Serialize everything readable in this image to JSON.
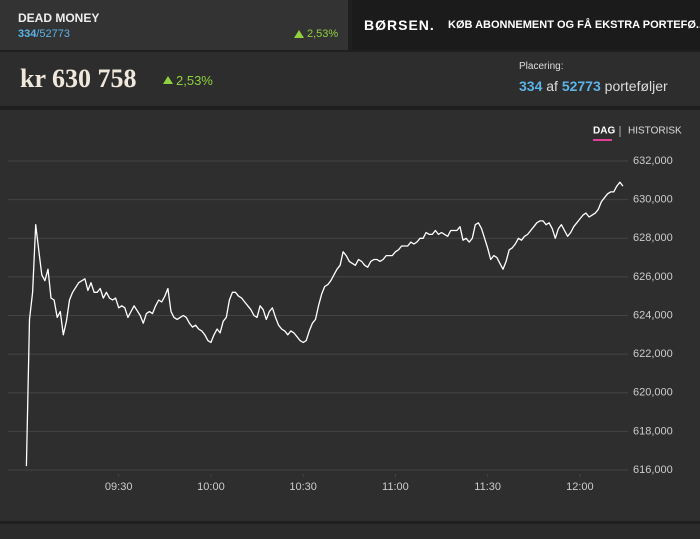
{
  "header": {
    "name": "DEAD MONEY",
    "rank": "334",
    "total": "/52773",
    "change": "2,53%",
    "logo": "BØRSEN.",
    "banner": "KØB ABONNEMENT OG FÅ EKSTRA PORTEFØ..."
  },
  "summary": {
    "value": "kr 630 758",
    "change": "2,53%",
    "placement_label": "Placering:",
    "placement_rank": "334",
    "placement_of": "af",
    "placement_total": "52773",
    "placement_unit": "porteføljer"
  },
  "tabs": [
    "DAG",
    "HISTORISK"
  ],
  "chart_data": {
    "type": "line",
    "color": "#ffffff",
    "grid": true,
    "xlim": [
      "08:54",
      "12:15"
    ],
    "xticks": [
      "09:30",
      "10:00",
      "10:30",
      "11:00",
      "11:30",
      "12:00"
    ],
    "ylim": [
      616000,
      632000
    ],
    "yticks": [
      {
        "value": 616000,
        "label": "616,000"
      },
      {
        "value": 618000,
        "label": "618,000"
      },
      {
        "value": 620000,
        "label": "620,000"
      },
      {
        "value": 622000,
        "label": "622,000"
      },
      {
        "value": 624000,
        "label": "624,000"
      },
      {
        "value": 626000,
        "label": "626,000"
      },
      {
        "value": 628000,
        "label": "628,000"
      },
      {
        "value": 630000,
        "label": "630,000"
      },
      {
        "value": 632000,
        "label": "632,000"
      }
    ],
    "x": [
      "09:00",
      "09:01",
      "09:02",
      "09:03",
      "09:04",
      "09:05",
      "09:06",
      "09:07",
      "09:08",
      "09:09",
      "09:10",
      "09:11",
      "09:12",
      "09:13",
      "09:14",
      "09:15",
      "09:17",
      "09:19",
      "09:20",
      "09:21",
      "09:22",
      "09:23",
      "09:24",
      "09:25",
      "09:26",
      "09:27",
      "09:28",
      "09:29",
      "09:30",
      "09:31",
      "09:32",
      "09:33",
      "09:34",
      "09:35",
      "09:37",
      "09:38",
      "09:39",
      "09:40",
      "09:41",
      "09:42",
      "09:43",
      "09:44",
      "09:45",
      "09:46",
      "09:47",
      "09:48",
      "09:49",
      "09:50",
      "09:51",
      "09:52",
      "09:53",
      "09:54",
      "09:55",
      "09:56",
      "09:57",
      "09:58",
      "09:59",
      "10:00",
      "10:01",
      "10:02",
      "10:03",
      "10:04",
      "10:05",
      "10:06",
      "10:07",
      "10:08",
      "10:09",
      "10:10",
      "10:11",
      "10:12",
      "10:13",
      "10:14",
      "10:15",
      "10:16",
      "10:17",
      "10:18",
      "10:19",
      "10:20",
      "10:21",
      "10:22",
      "10:23",
      "10:24",
      "10:25",
      "10:26",
      "10:27",
      "10:28",
      "10:29",
      "10:30",
      "10:31",
      "10:32",
      "10:33",
      "10:34",
      "10:35",
      "10:36",
      "10:37",
      "10:38",
      "10:39",
      "10:40",
      "10:41",
      "10:42",
      "10:43",
      "10:44",
      "10:45",
      "10:46",
      "10:47",
      "10:48",
      "10:49",
      "10:50",
      "10:51",
      "10:52",
      "10:53",
      "10:54",
      "10:55",
      "10:56",
      "10:57",
      "10:58",
      "10:59",
      "11:00",
      "11:01",
      "11:02",
      "11:03",
      "11:04",
      "11:05",
      "11:06",
      "11:07",
      "11:08",
      "11:09",
      "11:10",
      "11:11",
      "11:12",
      "11:13",
      "11:14",
      "11:15",
      "11:16",
      "11:17",
      "11:18",
      "11:19",
      "11:20",
      "11:21",
      "11:22",
      "11:23",
      "11:24",
      "11:25",
      "11:26",
      "11:27",
      "11:28",
      "11:29",
      "11:30",
      "11:31",
      "11:32",
      "11:33",
      "11:34",
      "11:35",
      "11:36",
      "11:37",
      "11:38",
      "11:39",
      "11:40",
      "11:41",
      "11:42",
      "11:43",
      "11:44",
      "11:45",
      "11:46",
      "11:47",
      "11:48",
      "11:49",
      "11:50",
      "11:51",
      "11:52",
      "11:53",
      "11:54",
      "11:55",
      "11:56",
      "11:57",
      "11:58",
      "11:59",
      "12:00",
      "12:01",
      "12:02",
      "12:03",
      "12:04",
      "12:05",
      "12:06",
      "12:07",
      "12:08",
      "12:09",
      "12:10",
      "12:11",
      "12:12",
      "12:13",
      "12:14"
    ],
    "values": [
      616200,
      623800,
      625200,
      628700,
      627400,
      626100,
      625800,
      626400,
      624900,
      624800,
      623900,
      624200,
      623000,
      623700,
      624800,
      625200,
      625700,
      625900,
      625300,
      625700,
      625200,
      625200,
      625400,
      624900,
      625200,
      624900,
      624800,
      624900,
      624400,
      624500,
      624400,
      623900,
      624200,
      624500,
      624000,
      623600,
      624100,
      624200,
      624100,
      624500,
      624800,
      624700,
      625000,
      625400,
      624200,
      623900,
      623800,
      623900,
      624000,
      623900,
      623600,
      623400,
      623500,
      623300,
      623200,
      623000,
      622700,
      622600,
      623000,
      623300,
      623100,
      623700,
      623900,
      624800,
      625200,
      625200,
      625000,
      624900,
      624700,
      624500,
      624300,
      624000,
      623900,
      624500,
      624300,
      623800,
      624200,
      624400,
      623900,
      623500,
      623300,
      623200,
      623000,
      623200,
      623100,
      622900,
      622700,
      622600,
      622700,
      623200,
      623600,
      623800,
      624500,
      625100,
      625500,
      625600,
      625800,
      626100,
      626400,
      626600,
      627300,
      627100,
      626800,
      626700,
      626600,
      626900,
      626800,
      626600,
      626500,
      626800,
      626900,
      626900,
      626800,
      626900,
      627100,
      627100,
      627100,
      627300,
      627400,
      627600,
      627600,
      627600,
      627800,
      627700,
      627800,
      628000,
      628000,
      628300,
      628200,
      628200,
      628400,
      628200,
      628300,
      628200,
      628100,
      628400,
      628400,
      628400,
      628600,
      627900,
      628000,
      627800,
      628000,
      628700,
      628800,
      628500,
      628000,
      627500,
      626900,
      627100,
      627000,
      626700,
      626400,
      626800,
      627400,
      627500,
      627700,
      628000,
      627900,
      628100,
      628200,
      628400,
      628600,
      628800,
      628900,
      628900,
      628700,
      628800,
      628500,
      628000,
      628500,
      628700,
      628400,
      628100,
      628300,
      628600,
      628800,
      629000,
      629200,
      629300,
      629100,
      629200,
      629300,
      629500,
      629900,
      630100,
      630300,
      630400,
      630400,
      630700,
      630900,
      630700
    ]
  }
}
